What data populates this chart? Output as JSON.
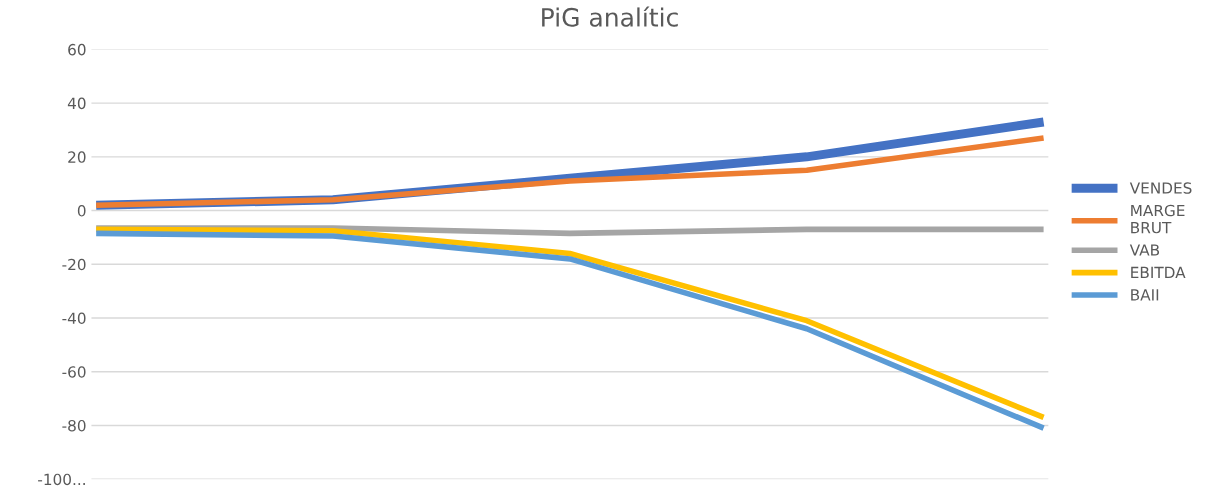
{
  "chart_data": {
    "type": "line",
    "title": "PiG analític",
    "categories": [
      null,
      null,
      null,
      null,
      null
    ],
    "series": [
      {
        "name": "VENDES",
        "color": "#4472c4",
        "values": [
          2,
          4,
          12,
          20,
          33
        ]
      },
      {
        "name": "MARGE\nBRUT",
        "color": "#ed7d31",
        "values": [
          2,
          4,
          11,
          15,
          27
        ]
      },
      {
        "name": "VAB",
        "color": "#a5a5a5",
        "values": [
          -6.5,
          -6.5,
          -8.5,
          -7,
          -7
        ]
      },
      {
        "name": "EBITDA",
        "color": "#ffc000",
        "values": [
          -7,
          -7.5,
          -16,
          -41,
          -77
        ]
      },
      {
        "name": "BAII",
        "color": "#5b9bd5",
        "values": [
          -8.5,
          -9.5,
          -18,
          -44,
          -81
        ]
      }
    ],
    "ylim": [
      -100,
      60
    ],
    "yticks": [
      {
        "value": -100,
        "label": "-100..."
      },
      -80,
      -60,
      -40,
      -20,
      0,
      20,
      40,
      60
    ],
    "grid": "y",
    "legend": "right",
    "marker": "none",
    "line_style": "solid"
  }
}
